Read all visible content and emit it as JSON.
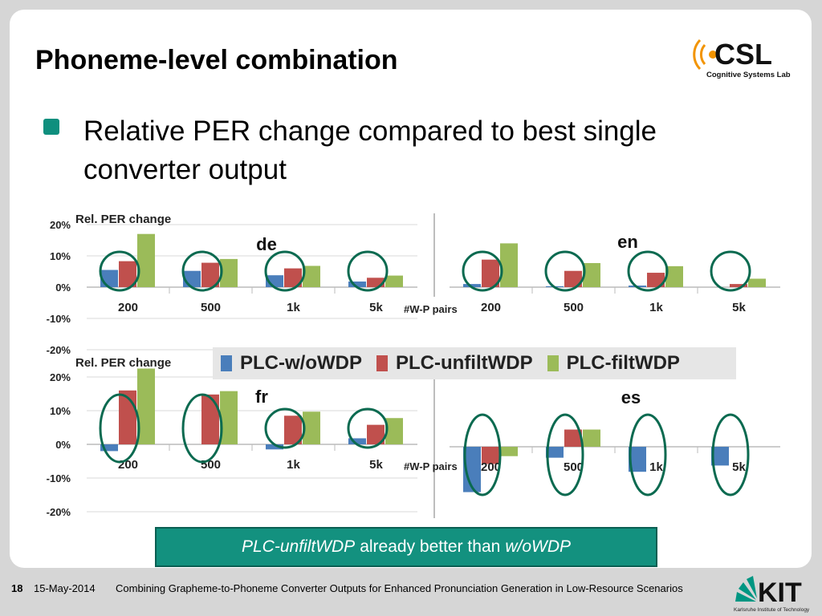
{
  "slide": {
    "title": "Phoneme-level combination",
    "bullet": "Relative PER change compared to best single converter output",
    "callout": {
      "part1": "PLC-unfiltWDP",
      "part2": "already better than",
      "part3": "w/oWDP"
    }
  },
  "logo": {
    "name": "CSL",
    "subtitle": "Cognitive Systems Lab"
  },
  "legend": [
    {
      "name": "PLC-w/oWDP",
      "color": "#4a7ebb"
    },
    {
      "name": "PLC-unfiltWDP",
      "color": "#c0504d"
    },
    {
      "name": "PLC-filtWDP",
      "color": "#9bbb59"
    }
  ],
  "footer": {
    "page": "18",
    "date": "15-May-2014",
    "talk_title": "Combining Grapheme-to-Phoneme Converter Outputs for Enhanced Pronunciation Generation in Low-Resource Scenarios",
    "kit_name": "KIT",
    "kit_subtitle": "Karlsruhe Institute of Technology"
  },
  "colors": {
    "accent": "#13917f",
    "circle": "#0b6a50"
  },
  "chart_data": [
    {
      "type": "bar",
      "title": "de",
      "ylabel": "Rel. PER change",
      "xlabel": "#W-P pairs",
      "categories": [
        "200",
        "500",
        "1k",
        "5k"
      ],
      "ylim": [
        -20,
        20
      ],
      "yticks": [
        20,
        10,
        0,
        -10,
        -20
      ],
      "series": [
        {
          "name": "PLC-w/oWDP",
          "values": [
            5.5,
            5.2,
            3.8,
            1.8
          ]
        },
        {
          "name": "PLC-unfiltWDP",
          "values": [
            8.3,
            7.8,
            6.0,
            3.0
          ]
        },
        {
          "name": "PLC-filtWDP",
          "values": [
            17.0,
            9.0,
            6.8,
            3.7
          ]
        }
      ],
      "circled": [
        "200",
        "500",
        "1k",
        "5k"
      ]
    },
    {
      "type": "bar",
      "title": "en",
      "xlabel": "#W-P pairs",
      "categories": [
        "200",
        "500",
        "1k",
        "5k"
      ],
      "ylim": [
        -20,
        20
      ],
      "series": [
        {
          "name": "PLC-w/oWDP",
          "values": [
            1.0,
            0.3,
            0.5,
            0.0
          ]
        },
        {
          "name": "PLC-unfiltWDP",
          "values": [
            8.8,
            5.2,
            4.6,
            1.0
          ]
        },
        {
          "name": "PLC-filtWDP",
          "values": [
            14.0,
            7.7,
            6.7,
            2.7
          ]
        }
      ],
      "circled": [
        "200",
        "500",
        "1k",
        "5k"
      ]
    },
    {
      "type": "bar",
      "title": "fr",
      "ylabel": "Rel. PER change",
      "xlabel": "#W-P pairs",
      "categories": [
        "200",
        "500",
        "1k",
        "5k"
      ],
      "ylim": [
        -20,
        20
      ],
      "yticks": [
        20,
        10,
        0,
        -10,
        -20
      ],
      "series": [
        {
          "name": "PLC-w/oWDP",
          "values": [
            -2.0,
            0.0,
            -1.5,
            1.8
          ]
        },
        {
          "name": "PLC-unfiltWDP",
          "values": [
            16.0,
            14.8,
            8.5,
            5.8
          ]
        },
        {
          "name": "PLC-filtWDP",
          "values": [
            22.5,
            15.8,
            9.7,
            7.8
          ]
        }
      ],
      "circled": [
        "200",
        "500",
        "1k",
        "5k"
      ]
    },
    {
      "type": "bar",
      "title": "es",
      "xlabel": "#W-P pairs",
      "categories": [
        "200",
        "500",
        "1k",
        "5k"
      ],
      "ylim": [
        -20,
        20
      ],
      "series": [
        {
          "name": "PLC-w/oWDP",
          "values": [
            -14.5,
            -3.5,
            -8.0,
            -6.0
          ]
        },
        {
          "name": "PLC-unfiltWDP",
          "values": [
            -5.5,
            5.5,
            0.0,
            0.0
          ]
        },
        {
          "name": "PLC-filtWDP",
          "values": [
            -3.0,
            5.5,
            0.0,
            0.0
          ]
        }
      ],
      "circled": [
        "200",
        "500",
        "1k",
        "5k"
      ]
    }
  ]
}
